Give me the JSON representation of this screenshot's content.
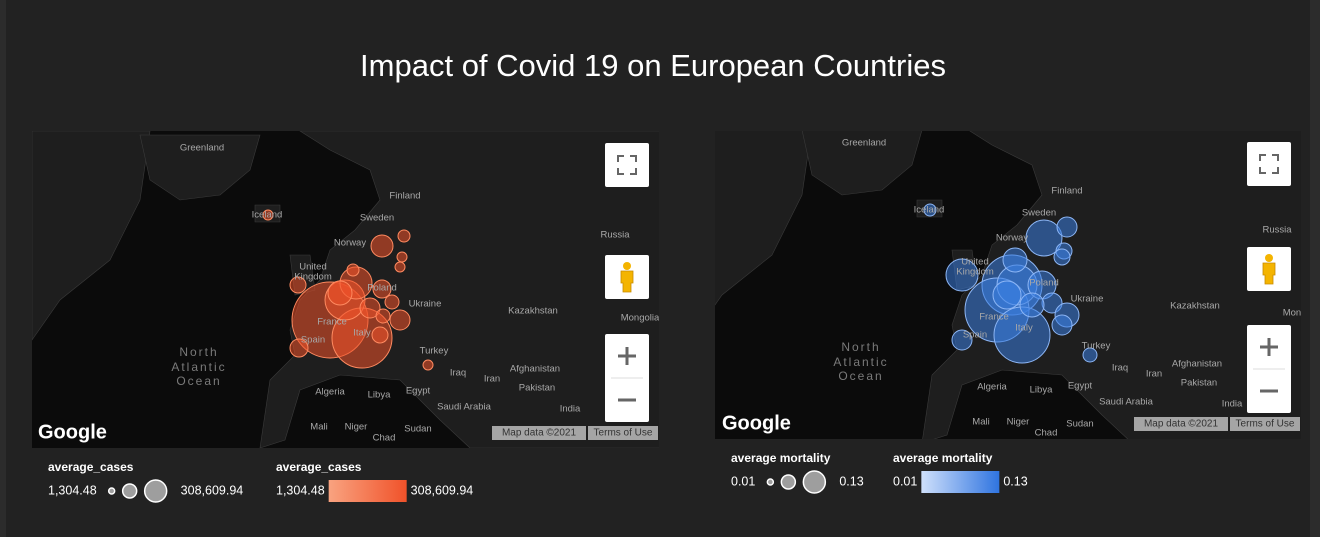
{
  "header": {
    "title": "Impact of Covid 19 on European Countries"
  },
  "maps": [
    {
      "labels": [
        "Greenland",
        "Iceland",
        "Finland",
        "Sweden",
        "Norway",
        "Russia",
        "United",
        "Kingdom",
        "Poland",
        "Ukraine",
        "Kazakhstan",
        "Mongolia",
        "France",
        "Spain",
        "Italy",
        "Turkey",
        "Iraq",
        "Iran",
        "Afghanistan",
        "Pakistan",
        "Algeria",
        "Libya",
        "Egypt",
        "Saudi Arabia",
        "India",
        "Mali",
        "Niger",
        "Chad",
        "Sudan",
        "North",
        "Atlantic",
        "Ocean"
      ],
      "logo": "Google",
      "attribution": "Map data ©2021",
      "terms": "Terms of Use",
      "size_legend": {
        "title": "average_cases",
        "min": "1,304.48",
        "max": "308,609.94"
      },
      "color_legend": {
        "title": "average_cases",
        "min": "1,304.48",
        "max": "308,609.94"
      }
    },
    {
      "labels": [
        "Greenland",
        "Iceland",
        "Finland",
        "Sweden",
        "Norway",
        "Russia",
        "United",
        "Kingdom",
        "Poland",
        "Ukraine",
        "Kazakhstan",
        "Mongolia",
        "France",
        "Spain",
        "Italy",
        "Turkey",
        "Iraq",
        "Iran",
        "Afghanistan",
        "Pakistan",
        "Algeria",
        "Libya",
        "Egypt",
        "Saudi Arabia",
        "India",
        "Mali",
        "Niger",
        "Chad",
        "Sudan",
        "North",
        "Atlantic",
        "Ocean"
      ],
      "logo": "Google",
      "attribution": "Map data ©2021",
      "terms": "Terms of Use",
      "size_legend": {
        "title": "average mortality",
        "min": "0.01",
        "max": "0.13"
      },
      "color_legend": {
        "title": "average mortality",
        "min": "0.01",
        "max": "0.13"
      }
    }
  ]
}
